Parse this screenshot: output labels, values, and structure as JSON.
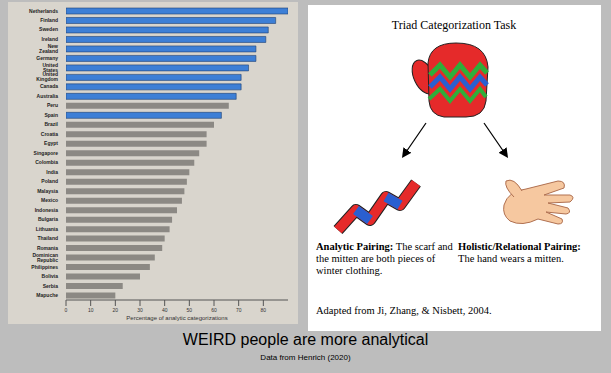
{
  "chart_data": {
    "type": "bar",
    "orientation": "horizontal",
    "categories": [
      "Netherlands",
      "Finland",
      "Sweden",
      "Ireland",
      "New Zealand",
      "Germany",
      "United States",
      "United Kingdom",
      "Canada",
      "Australia",
      "Peru",
      "Spain",
      "Brazil",
      "Croatia",
      "Egypt",
      "Singapore",
      "Colombia",
      "India",
      "Poland",
      "Malaysia",
      "Mexico",
      "Indonesia",
      "Bulgaria",
      "Lithuania",
      "Thailand",
      "Romania",
      "Dominican Republic",
      "Philippines",
      "Bolivia",
      "Serbia",
      "Mapuche"
    ],
    "values": [
      90,
      85,
      82,
      81,
      77,
      77,
      74,
      71,
      71,
      69,
      66,
      63,
      60,
      57,
      57,
      54,
      52,
      50,
      49,
      48,
      47,
      45,
      43,
      42,
      40,
      39,
      36,
      34,
      30,
      23,
      20
    ],
    "colors": [
      "#3d7fd6",
      "#3d7fd6",
      "#3d7fd6",
      "#3d7fd6",
      "#3d7fd6",
      "#3d7fd6",
      "#3d7fd6",
      "#3d7fd6",
      "#3d7fd6",
      "#3d7fd6",
      "#8c8984",
      "#3d7fd6",
      "#8c8984",
      "#8c8984",
      "#8c8984",
      "#8c8984",
      "#8c8984",
      "#8c8984",
      "#8c8984",
      "#8c8984",
      "#8c8984",
      "#8c8984",
      "#8c8984",
      "#8c8984",
      "#8c8984",
      "#8c8984",
      "#8c8984",
      "#8c8984",
      "#8c8984",
      "#8c8984",
      "#8c8984"
    ],
    "xlim": [
      0,
      90
    ],
    "xticks": [
      0,
      10,
      20,
      30,
      40,
      50,
      60,
      70,
      80
    ],
    "x_label": "Percentage of analytic categorizations"
  },
  "diagram": {
    "title": "Triad Categorization Task",
    "analytic": {
      "heading": "Analytic Pairing:",
      "text": "The scarf and the mitten are both pieces of winter clothing."
    },
    "holistic": {
      "heading": "Holistic/Relational Pairing:",
      "text": "The hand wears a mitten."
    },
    "source": "Adapted from Ji, Zhang, & Nisbett, 2004."
  },
  "caption": {
    "title": "WEIRD people are more analytical",
    "subtitle": "Data from Henrich (2020)"
  }
}
